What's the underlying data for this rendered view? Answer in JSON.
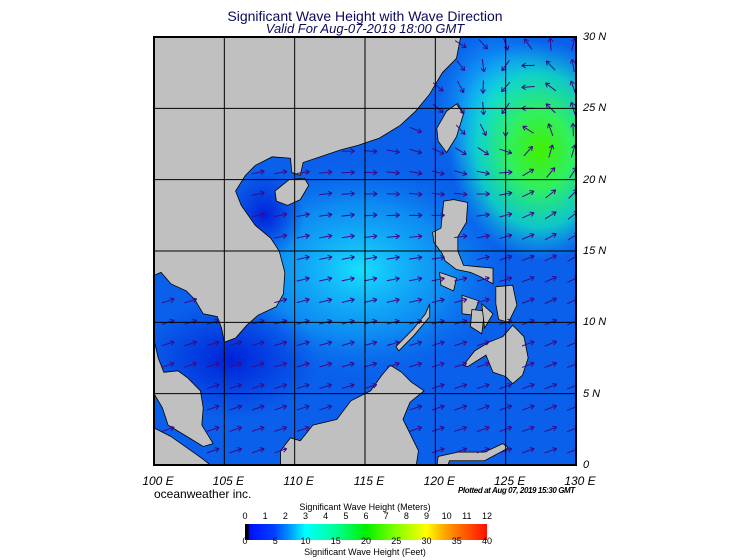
{
  "title": "Significant Wave Height with Wave Direction",
  "subtitle": "Valid For Aug-07-2019 18:00 GMT",
  "map": {
    "lon_range": [
      100,
      130
    ],
    "lat_range": [
      0,
      30
    ],
    "grid_step_deg": 5,
    "lon_labels": [
      "100 E",
      "105 E",
      "110 E",
      "115 E",
      "120 E",
      "125 E",
      "130 E"
    ],
    "lat_labels": [
      "0",
      "5 N",
      "10 N",
      "15 N",
      "20 N",
      "25 N",
      "30 N"
    ],
    "land_color": "#c0c0c0",
    "arrow_color": "#3a0a8a",
    "gridline_color": "#000000"
  },
  "brand": "oceanweather inc.",
  "plotted": "Plotted at Aug 07, 2019 15:30 GMT",
  "colorbar": {
    "title_meters": "Significant Wave Height (Meters)",
    "title_feet": "Significant Wave Height (Feet)",
    "meters_ticks": [
      "0",
      "1",
      "2",
      "3",
      "4",
      "5",
      "6",
      "7",
      "8",
      "9",
      "10",
      "11",
      "12"
    ],
    "feet_ticks": [
      "0",
      "5",
      "10",
      "15",
      "20",
      "25",
      "30",
      "35",
      "40"
    ]
  }
}
